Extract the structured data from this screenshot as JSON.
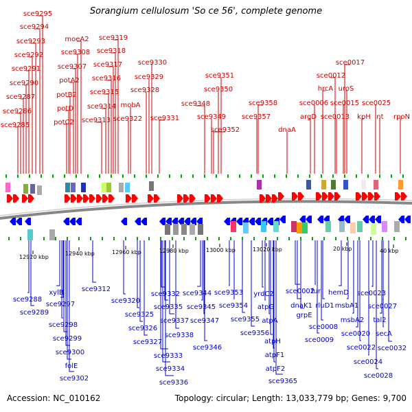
{
  "title": "Sorangium cellulosum 'So ce 56', complete genome",
  "footer": {
    "accession": "Accession: NC_010162",
    "topology": "Topology: circular; Length: 13,033,779 bp; Genes: 9,700"
  },
  "colors": {
    "top_labels": "#cc0000",
    "bottom_labels": "#0000cc",
    "forward_arrows": "#ff0000",
    "reverse_arrows": "#0000ff",
    "ticks": "#00aa00",
    "backbone": "#888888"
  },
  "coordinate_ticks": [
    "12920 kbp",
    "12940 kbp",
    "12960 kbp",
    "12980 kbp",
    "13000 kbp",
    "13020 kbp",
    "20 kbp",
    "40 kbp"
  ],
  "top_genes": [
    "sce9295",
    "sce9294",
    "sce9293",
    "sce9292",
    "sce9291",
    "sce9290",
    "sce9287",
    "sce9286",
    "sce9285",
    "moeA2",
    "sce9308",
    "sce9307",
    "potA2",
    "potB2",
    "potD",
    "potC2",
    "sce9319",
    "sce9318",
    "sce9317",
    "sce9316",
    "sce9315",
    "sce9314",
    "sce9313",
    "mobA",
    "sce9322",
    "sce9330",
    "sce9329",
    "sce9328",
    "sce9331",
    "sce9351",
    "sce9350",
    "sce9348",
    "sce9349",
    "sce9352",
    "sce9358",
    "sce9357",
    "dnaA",
    "sce0017",
    "sce0012",
    "hrcA",
    "uroS",
    "sce0006",
    "sce0015",
    "argD",
    "sce0013",
    "sce0025",
    "kpH",
    "lnt",
    "rpoN"
  ],
  "bottom_genes": [
    "sce9288",
    "sce9289",
    "xylB",
    "sce9297",
    "sce9298",
    "sce9299",
    "sce9300",
    "folE",
    "sce9302",
    "sce9312",
    "sce9320",
    "sce9325",
    "sce9326",
    "sce9327",
    "sce9332",
    "sce9335",
    "sce9337",
    "sce9338",
    "sce9333",
    "sce9334",
    "sce9336",
    "sce9344",
    "sce9345",
    "sce9347",
    "sce9346",
    "sce9353",
    "sce9354",
    "sce9355",
    "sce9356",
    "yrdC2",
    "atpG",
    "atpA",
    "atpH",
    "atpF1",
    "atpF2",
    "sce9365",
    "sce0002",
    "dnaK1",
    "grpE",
    "fur",
    "rluD1",
    "sce0008",
    "sce0009",
    "hemD",
    "msbA1",
    "msbA2",
    "sce0020",
    "sce0022",
    "sce0024",
    "sce0023",
    "sce0027",
    "tal2",
    "secA",
    "sce0032",
    "sce0028"
  ]
}
